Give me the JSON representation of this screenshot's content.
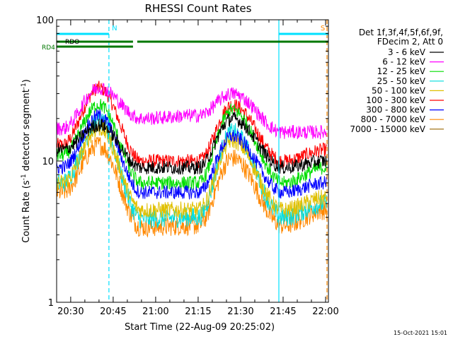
{
  "chart_data": {
    "type": "line",
    "title": "RHESSI Count Rates",
    "xlabel": "Start Time (22-Aug-09 20:25:02)",
    "ylabel_main": "Count Rate (s",
    "ylabel_sup1": "-1",
    "ylabel_mid": " detector segment",
    "ylabel_sup2": "-1",
    "ylabel_end": ")",
    "yscale": "log",
    "ylim": [
      1,
      100
    ],
    "xlim": [
      "20:25:02",
      "22:01:00"
    ],
    "xticks": [
      "20:30",
      "20:45",
      "21:00",
      "21:15",
      "21:30",
      "21:45",
      "22:00"
    ],
    "yticks": [
      "1",
      "10",
      "100"
    ],
    "legend_header": [
      "Det 1f,3f,4f,5f,6f,9f,",
      "FDecim 2, Att 0"
    ],
    "legend_position": "right",
    "series": [
      {
        "name": "3 - 6 keV",
        "color": "#000000",
        "values": [
          {
            "t": "20:27",
            "y": 12
          },
          {
            "t": "20:40",
            "y": 18
          },
          {
            "t": "20:55",
            "y": 9
          },
          {
            "t": "21:15",
            "y": 9
          },
          {
            "t": "21:27",
            "y": 20
          },
          {
            "t": "21:45",
            "y": 9
          },
          {
            "t": "22:00",
            "y": 10
          }
        ]
      },
      {
        "name": "6 - 12 keV",
        "color": "#ff00ff",
        "values": [
          {
            "t": "20:27",
            "y": 17
          },
          {
            "t": "20:40",
            "y": 33
          },
          {
            "t": "20:55",
            "y": 20
          },
          {
            "t": "21:15",
            "y": 21
          },
          {
            "t": "21:27",
            "y": 30
          },
          {
            "t": "21:45",
            "y": 16
          },
          {
            "t": "22:00",
            "y": 16
          }
        ]
      },
      {
        "name": "12 - 25 keV",
        "color": "#00dd00",
        "values": [
          {
            "t": "20:27",
            "y": 11
          },
          {
            "t": "20:40",
            "y": 25
          },
          {
            "t": "20:55",
            "y": 7
          },
          {
            "t": "21:15",
            "y": 7
          },
          {
            "t": "21:27",
            "y": 23
          },
          {
            "t": "21:45",
            "y": 7
          },
          {
            "t": "22:00",
            "y": 9
          }
        ]
      },
      {
        "name": "25 - 50 keV",
        "color": "#00dddd",
        "values": [
          {
            "t": "20:27",
            "y": 7
          },
          {
            "t": "20:40",
            "y": 19
          },
          {
            "t": "20:55",
            "y": 3.9
          },
          {
            "t": "21:15",
            "y": 4
          },
          {
            "t": "21:27",
            "y": 16
          },
          {
            "t": "21:45",
            "y": 4
          },
          {
            "t": "22:00",
            "y": 5
          }
        ]
      },
      {
        "name": "50 - 100 keV",
        "color": "#e0c000",
        "values": [
          {
            "t": "20:27",
            "y": 7
          },
          {
            "t": "20:40",
            "y": 17
          },
          {
            "t": "20:55",
            "y": 4.5
          },
          {
            "t": "21:15",
            "y": 4.5
          },
          {
            "t": "21:27",
            "y": 14
          },
          {
            "t": "21:45",
            "y": 4.5
          },
          {
            "t": "22:00",
            "y": 5.5
          }
        ]
      },
      {
        "name": "100 - 300 keV",
        "color": "#ff0000",
        "values": [
          {
            "t": "20:27",
            "y": 13
          },
          {
            "t": "20:40",
            "y": 33
          },
          {
            "t": "20:55",
            "y": 10
          },
          {
            "t": "21:15",
            "y": 10
          },
          {
            "t": "21:27",
            "y": 25
          },
          {
            "t": "21:45",
            "y": 10
          },
          {
            "t": "22:00",
            "y": 12
          }
        ]
      },
      {
        "name": "300 - 800 keV",
        "color": "#0000ff",
        "values": [
          {
            "t": "20:27",
            "y": 9
          },
          {
            "t": "20:40",
            "y": 21
          },
          {
            "t": "20:55",
            "y": 6
          },
          {
            "t": "21:15",
            "y": 6
          },
          {
            "t": "21:27",
            "y": 15
          },
          {
            "t": "21:45",
            "y": 6
          },
          {
            "t": "22:00",
            "y": 7
          }
        ]
      },
      {
        "name": "800 - 7000 keV",
        "color": "#ff8800",
        "values": [
          {
            "t": "20:27",
            "y": 6
          },
          {
            "t": "20:40",
            "y": 13
          },
          {
            "t": "20:55",
            "y": 3.4
          },
          {
            "t": "21:15",
            "y": 3.5
          },
          {
            "t": "21:27",
            "y": 10.5
          },
          {
            "t": "21:45",
            "y": 3.5
          },
          {
            "t": "22:00",
            "y": 4.5
          }
        ]
      },
      {
        "name": "7000 - 15000 keV",
        "color": "#996600",
        "values": []
      }
    ],
    "annotations": {
      "top_bars": [
        {
          "label": "N",
          "color": "#00e0ff",
          "start": "20:25:02",
          "end": "20:43:30"
        },
        {
          "label": "S",
          "color": "#ff8800",
          "start": "22:00:30",
          "end": "22:01:00"
        },
        {
          "label": "",
          "color": "#00e0ff",
          "start": "21:43:30",
          "end": "22:01:00"
        }
      ],
      "rdo_label": "RDO",
      "rd4_label": "RD4",
      "green_bar_segments": [
        {
          "start": "20:25:02",
          "end": "20:52:00"
        },
        {
          "start": "20:53:30",
          "end": "22:01:00"
        }
      ],
      "vertical_lines": [
        {
          "t": "20:43:30",
          "color": "#00e0ff",
          "style": "dashed"
        },
        {
          "t": "21:43:30",
          "color": "#00e0ff",
          "style": "solid"
        },
        {
          "t": "22:00:30",
          "color": "#ff8800",
          "style": "dashed"
        }
      ]
    },
    "footer_timestamp": "15-Oct-2021 15:01"
  }
}
